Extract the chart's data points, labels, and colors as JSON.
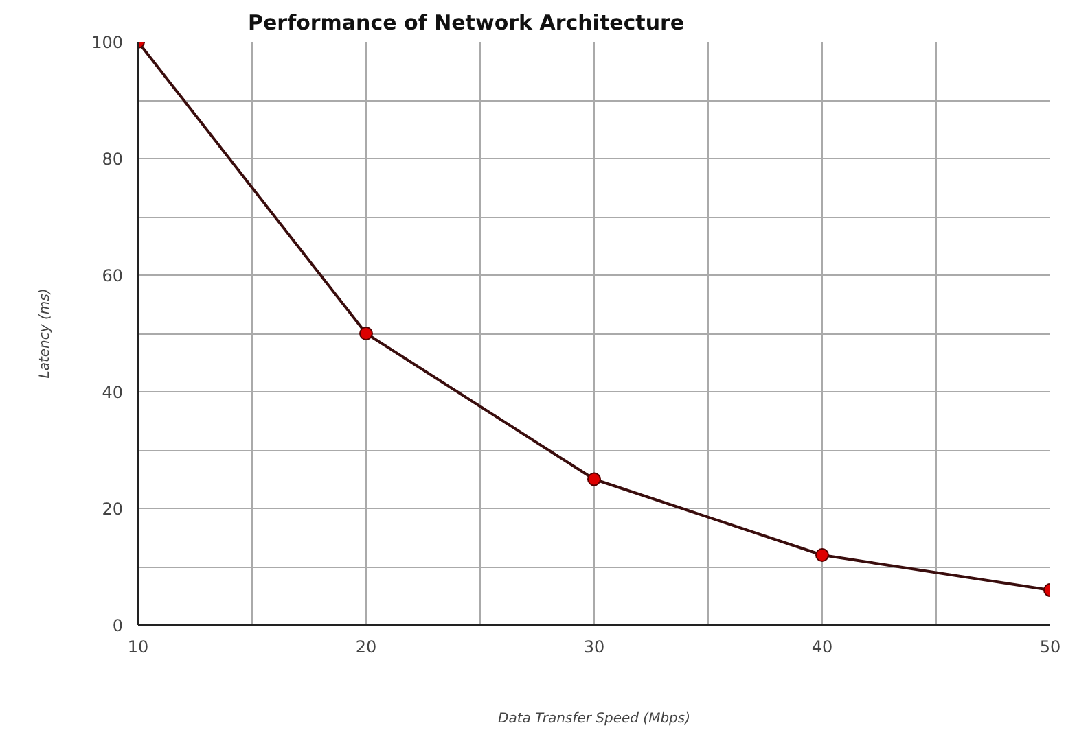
{
  "chart_data": {
    "type": "line",
    "title": "Performance of Network Architecture",
    "xlabel": "Data Transfer Speed (Mbps)",
    "ylabel": "Latency (ms)",
    "x": [
      10,
      20,
      30,
      40,
      50
    ],
    "series": [
      {
        "color": "#3a0d0d",
        "values": [
          100,
          50,
          25,
          12,
          6
        ]
      }
    ],
    "marker": "circle",
    "line_style": "solid",
    "grid": true,
    "xlim": [
      10,
      50
    ],
    "ylim": [
      0,
      100
    ],
    "xticks": [
      10,
      {
        "value": 15,
        "label": null
      },
      20,
      {
        "value": 25,
        "label": null
      },
      30,
      {
        "value": 35,
        "label": null
      },
      40,
      {
        "value": 45,
        "label": null
      },
      50
    ],
    "yticks": [
      0,
      {
        "value": 10,
        "label": null
      },
      20,
      {
        "value": 30,
        "label": null
      },
      40,
      {
        "value": 50,
        "label": null
      },
      60,
      {
        "value": 70,
        "label": null
      },
      80,
      {
        "value": 90,
        "label": null
      },
      100
    ]
  }
}
